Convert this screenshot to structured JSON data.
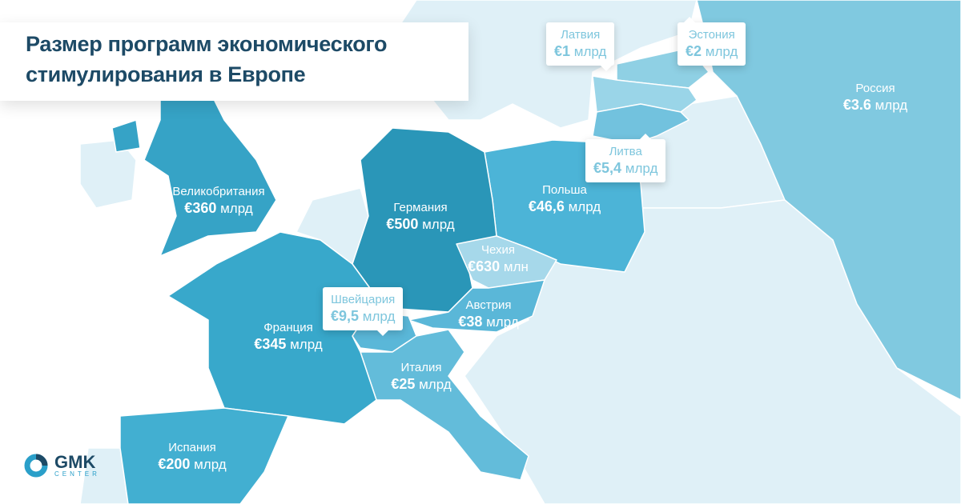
{
  "title": "Размер программ экономического стимулирования в Европе",
  "title_line1": "Размер программ экономического",
  "title_line2": "стимулирования в Европе",
  "countries": {
    "uk": {
      "name": "Великобритания",
      "amount": "€360",
      "unit": "млрд"
    },
    "germany": {
      "name": "Германия",
      "amount": "€500",
      "unit": "млрд"
    },
    "poland": {
      "name": "Польша",
      "amount": "€46,6",
      "unit": "млрд"
    },
    "czech": {
      "name": "Чехия",
      "amount": "€630",
      "unit": "млн"
    },
    "austria": {
      "name": "Австрия",
      "amount": "€38",
      "unit": "млрд"
    },
    "france": {
      "name": "Франция",
      "amount": "€345",
      "unit": "млрд"
    },
    "italy": {
      "name": "Италия",
      "amount": "€25",
      "unit": "млрд"
    },
    "spain": {
      "name": "Испания",
      "amount": "€200",
      "unit": "млрд"
    },
    "russia": {
      "name": "Россия",
      "amount": "€3.6",
      "unit": "млрд"
    },
    "switzerland": {
      "name": "Швейцария",
      "amount": "€9,5",
      "unit": "млрд"
    },
    "latvia": {
      "name": "Латвия",
      "amount": "€1",
      "unit": "млрд"
    },
    "estonia": {
      "name": "Эстония",
      "amount": "€2",
      "unit": "млрд"
    },
    "lithuania": {
      "name": "Литва",
      "amount": "€5,4",
      "unit": "млрд"
    }
  },
  "colors": {
    "germany": "#2a96b8",
    "uk": "#36a3c6",
    "france": "#38a8cb",
    "spain": "#42afd1",
    "poland": "#4cb4d7",
    "italy": "#63bcda",
    "austria": "#5ab7d8",
    "czech": "#a6d8ea",
    "russia": "#80c9e0",
    "baltics": "#72c2de",
    "other": "#dff0f7",
    "title": "#1d4a66"
  },
  "logo": {
    "main": "GMK",
    "sub": "CENTER"
  }
}
